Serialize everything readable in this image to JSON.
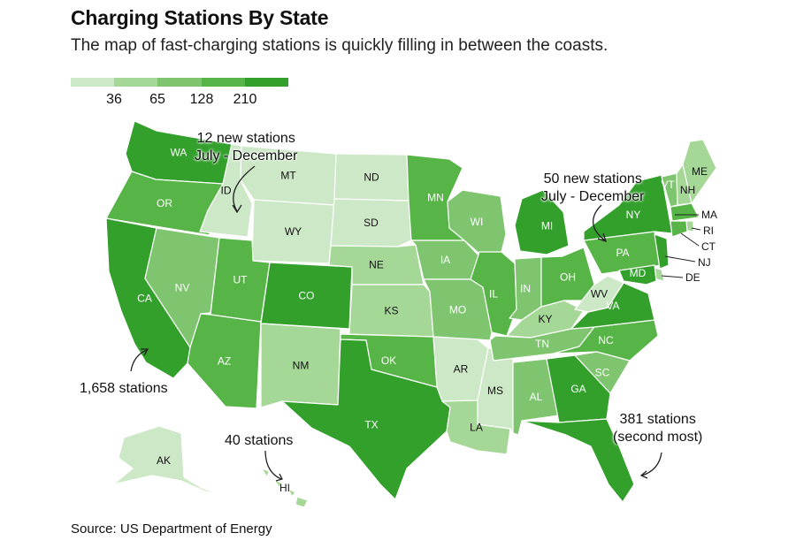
{
  "header": {
    "title": "Charging Stations By State",
    "subtitle": "The map of fast-charging stations is quickly filling in between the coasts."
  },
  "legend": {
    "bins": [
      "#cde8c6",
      "#a5d897",
      "#7fc56f",
      "#57b447",
      "#33a02c"
    ],
    "ticks": [
      "36",
      "65",
      "128",
      "210"
    ]
  },
  "map_data": {
    "type": "choropleth",
    "value": "fast-charging stations",
    "states": [
      {
        "abbr": "WA",
        "bin": 4
      },
      {
        "abbr": "OR",
        "bin": 3
      },
      {
        "abbr": "CA",
        "bin": 4
      },
      {
        "abbr": "ID",
        "bin": 0
      },
      {
        "abbr": "NV",
        "bin": 2
      },
      {
        "abbr": "MT",
        "bin": 0
      },
      {
        "abbr": "WY",
        "bin": 0
      },
      {
        "abbr": "UT",
        "bin": 3
      },
      {
        "abbr": "AZ",
        "bin": 3
      },
      {
        "abbr": "CO",
        "bin": 4
      },
      {
        "abbr": "NM",
        "bin": 1
      },
      {
        "abbr": "ND",
        "bin": 0
      },
      {
        "abbr": "SD",
        "bin": 0
      },
      {
        "abbr": "NE",
        "bin": 1
      },
      {
        "abbr": "KS",
        "bin": 1
      },
      {
        "abbr": "OK",
        "bin": 3
      },
      {
        "abbr": "TX",
        "bin": 4
      },
      {
        "abbr": "MN",
        "bin": 3
      },
      {
        "abbr": "IA",
        "bin": 2
      },
      {
        "abbr": "MO",
        "bin": 2
      },
      {
        "abbr": "AR",
        "bin": 0
      },
      {
        "abbr": "LA",
        "bin": 1
      },
      {
        "abbr": "WI",
        "bin": 2
      },
      {
        "abbr": "IL",
        "bin": 3
      },
      {
        "abbr": "MS",
        "bin": 0
      },
      {
        "abbr": "MI",
        "bin": 4
      },
      {
        "abbr": "IN",
        "bin": 2
      },
      {
        "abbr": "KY",
        "bin": 1
      },
      {
        "abbr": "TN",
        "bin": 2
      },
      {
        "abbr": "AL",
        "bin": 2
      },
      {
        "abbr": "OH",
        "bin": 3
      },
      {
        "abbr": "GA",
        "bin": 4
      },
      {
        "abbr": "FL",
        "bin": 4
      },
      {
        "abbr": "SC",
        "bin": 2
      },
      {
        "abbr": "NC",
        "bin": 3
      },
      {
        "abbr": "VA",
        "bin": 4
      },
      {
        "abbr": "WV",
        "bin": 0
      },
      {
        "abbr": "PA",
        "bin": 3
      },
      {
        "abbr": "NY",
        "bin": 4
      },
      {
        "abbr": "VT",
        "bin": 2
      },
      {
        "abbr": "NH",
        "bin": 1
      },
      {
        "abbr": "ME",
        "bin": 1
      },
      {
        "abbr": "MA",
        "bin": 3
      },
      {
        "abbr": "RI",
        "bin": 1
      },
      {
        "abbr": "CT",
        "bin": 3
      },
      {
        "abbr": "NJ",
        "bin": 4
      },
      {
        "abbr": "DE",
        "bin": 1
      },
      {
        "abbr": "MD",
        "bin": 4
      },
      {
        "abbr": "AK",
        "bin": 0
      },
      {
        "abbr": "HI",
        "bin": 1
      }
    ]
  },
  "annotations": {
    "montana_line1": "12 new stations",
    "montana_line2": "July - December",
    "michigan_line1": "50 new stations",
    "michigan_line2": "July - December",
    "california": "1,658 stations",
    "hawaii": "40 stations",
    "florida_line1": "381 stations",
    "florida_line2": "(second most)"
  },
  "footer": {
    "source": "Source: US Department of Energy"
  }
}
